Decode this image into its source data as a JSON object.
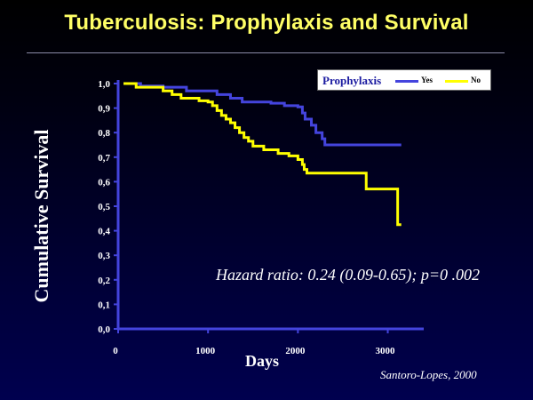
{
  "slide": {
    "title": "Tuberculosis: Prophylaxis and Survival",
    "annotation": "Hazard ratio: 0.24 (0.09-0.65); p=0 .002",
    "source": "Santoro-Lopes, 2000"
  },
  "chart_data": {
    "type": "line",
    "title": "",
    "xlabel": "Days",
    "ylabel": "Cumulative Survival",
    "xlim": [
      0,
      3400
    ],
    "ylim": [
      0,
      1.0
    ],
    "xticks": [
      0,
      1000,
      2000,
      3000
    ],
    "xtick_labels": [
      "0",
      "1000",
      "2000",
      "3000"
    ],
    "yticks": [
      0,
      0.1,
      0.2,
      0.3,
      0.4,
      0.5,
      0.6,
      0.7,
      0.8,
      0.9,
      1.0
    ],
    "ytick_labels": [
      "0,0",
      "0,1",
      "0,2",
      "0,3",
      "0,4",
      "0,5",
      "0,6",
      "0,7",
      "0,8",
      "0,9",
      "1,0"
    ],
    "step": true,
    "grid": false,
    "legend": {
      "title": "Prophylaxis",
      "placement": "top-right"
    },
    "series": [
      {
        "name": "Yes",
        "color": "#4444dd",
        "x": [
          60,
          250,
          500,
          760,
          1000,
          1100,
          1250,
          1380,
          1700,
          1850,
          2000,
          2050,
          2080,
          2150,
          2200,
          2270,
          2300,
          3150
        ],
        "y": [
          1.0,
          0.99,
          0.985,
          0.97,
          0.97,
          0.955,
          0.94,
          0.925,
          0.92,
          0.91,
          0.905,
          0.88,
          0.855,
          0.83,
          0.8,
          0.775,
          0.75,
          0.75
        ]
      },
      {
        "name": "No",
        "color": "#ffff00",
        "x": [
          60,
          200,
          500,
          600,
          700,
          900,
          1000,
          1050,
          1100,
          1150,
          1200,
          1250,
          1300,
          1350,
          1400,
          1450,
          1500,
          1620,
          1780,
          1900,
          2000,
          2050,
          2070,
          2100,
          2750,
          2760,
          3100,
          3110,
          3150
        ],
        "y": [
          1.0,
          0.985,
          0.97,
          0.955,
          0.94,
          0.93,
          0.925,
          0.91,
          0.89,
          0.87,
          0.855,
          0.84,
          0.82,
          0.8,
          0.78,
          0.765,
          0.745,
          0.73,
          0.715,
          0.705,
          0.69,
          0.67,
          0.65,
          0.635,
          0.635,
          0.57,
          0.57,
          0.425,
          0.425
        ]
      }
    ]
  }
}
